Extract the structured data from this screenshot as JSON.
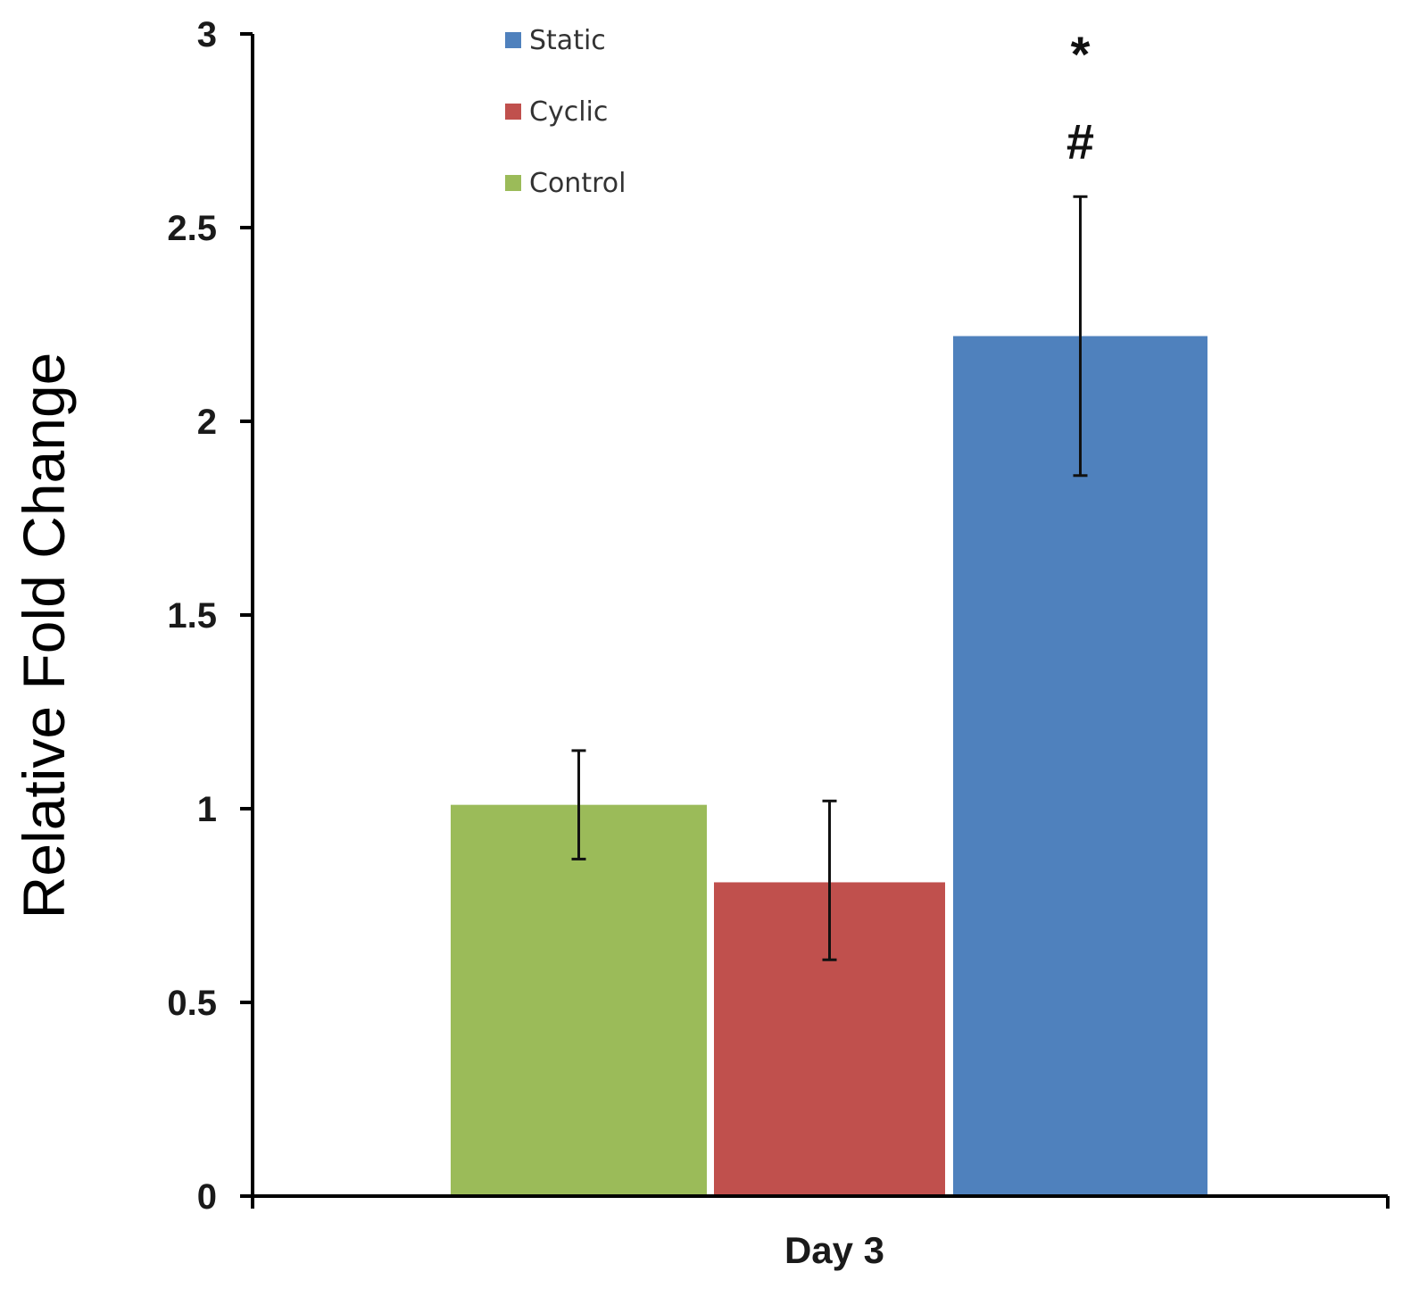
{
  "chart_data": {
    "type": "bar",
    "title": "",
    "xlabel": "",
    "ylabel": "Relative Fold Change",
    "ylim": [
      0,
      3
    ],
    "yticks": [
      "0",
      "0.5",
      "1",
      "1.5",
      "2",
      "2.5",
      "3"
    ],
    "categories": [
      "Day 3"
    ],
    "series": [
      {
        "name": "Control",
        "color": "#9BBB59",
        "values": [
          1.01
        ],
        "error": [
          [
            0.87,
            1.15
          ]
        ]
      },
      {
        "name": "Cyclic",
        "color": "#C0504D",
        "values": [
          0.81
        ],
        "error": [
          [
            0.61,
            1.02
          ]
        ]
      },
      {
        "name": "Static",
        "color": "#4F81BD",
        "values": [
          2.22
        ],
        "error": [
          [
            1.86,
            2.58
          ]
        ]
      }
    ],
    "legend": {
      "position": "top-left",
      "order": [
        "Static",
        "Cyclic",
        "Control"
      ]
    },
    "annotations": [
      {
        "series": "Static",
        "text": "*"
      },
      {
        "series": "Static",
        "text": "#"
      }
    ],
    "grid": false
  }
}
